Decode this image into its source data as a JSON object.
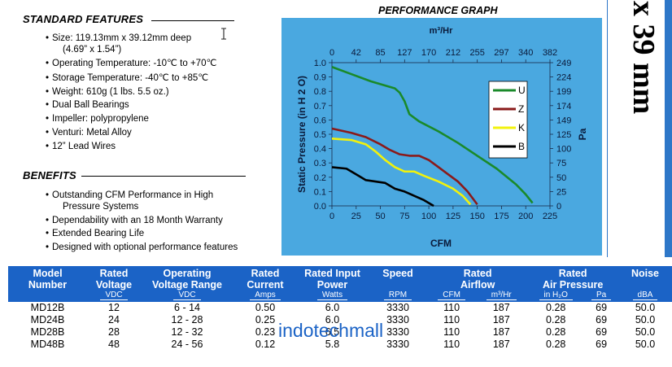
{
  "standard_features": {
    "title": "STANDARD FEATURES",
    "items": [
      "Size:  119.13mm x 39.12mm deep",
      "(4.69” x 1.54”)",
      "Operating Temperature:  -10℃ to +70℃",
      "Storage Temperature:  -40℃ to +85℃",
      "Weight:  610g (1 lbs. 5.5 oz.)",
      "Dual Ball Bearings",
      "Impeller:  polypropylene",
      "Venturi:  Metal Alloy",
      "12” Lead Wires"
    ]
  },
  "benefits": {
    "title": "BENEFITS",
    "items": [
      "Outstanding CFM Performance in High",
      "Pressure Systems",
      "Dependability with an 18 Month Warranty",
      "Extended Bearing Life",
      "Designed with optional performance features"
    ]
  },
  "side_label": "x 39 mm",
  "performance_graph_title": "PERFORMANCE GRAPH",
  "chart_data": {
    "type": "line",
    "title": "PERFORMANCE GRAPH",
    "xlabel": "CFM",
    "ylabel": "Static Pressure (in H 2 O)",
    "x2label": "m³/Hr",
    "y2label": "Pa",
    "xlim": [
      0,
      225
    ],
    "ylim": [
      0,
      1.0
    ],
    "x_ticks": [
      "0",
      "25",
      "50",
      "75",
      "100",
      "125",
      "150",
      "175",
      "200",
      "225"
    ],
    "y_ticks": [
      "0.0",
      "0.1",
      "0.2",
      "0.3",
      "0.4",
      "0.5",
      "0.6",
      "0.7",
      "0.8",
      "0.9",
      "1.0"
    ],
    "x2_ticks": [
      "0",
      "42",
      "85",
      "127",
      "170",
      "212",
      "255",
      "297",
      "340",
      "382"
    ],
    "y2_ticks": [
      "0",
      "25",
      "50",
      "75",
      "100",
      "125",
      "149",
      "174",
      "199",
      "224",
      "249"
    ],
    "grid": false,
    "legend": "right",
    "series": [
      {
        "name": "U",
        "color": "#1a8a2a",
        "x": [
          0,
          20,
          40,
          55,
          65,
          70,
          75,
          80,
          90,
          110,
          130,
          150,
          170,
          190,
          200,
          207
        ],
        "y": [
          0.97,
          0.92,
          0.87,
          0.84,
          0.82,
          0.79,
          0.73,
          0.64,
          0.59,
          0.52,
          0.44,
          0.35,
          0.26,
          0.15,
          0.08,
          0.02
        ]
      },
      {
        "name": "Z",
        "color": "#8a1a1a",
        "x": [
          0,
          20,
          35,
          50,
          60,
          70,
          80,
          90,
          100,
          110,
          120,
          130,
          140,
          150
        ],
        "y": [
          0.54,
          0.51,
          0.48,
          0.43,
          0.39,
          0.36,
          0.35,
          0.35,
          0.32,
          0.27,
          0.22,
          0.17,
          0.1,
          0.01
        ]
      },
      {
        "name": "K",
        "color": "#f2f20c",
        "x": [
          0,
          20,
          35,
          45,
          55,
          65,
          75,
          85,
          95,
          110,
          125,
          135,
          143
        ],
        "y": [
          0.47,
          0.46,
          0.43,
          0.38,
          0.32,
          0.27,
          0.24,
          0.24,
          0.21,
          0.17,
          0.12,
          0.07,
          0.01
        ]
      },
      {
        "name": "B",
        "color": "#000000",
        "x": [
          0,
          15,
          25,
          35,
          45,
          55,
          65,
          75,
          85,
          95,
          105
        ],
        "y": [
          0.27,
          0.26,
          0.22,
          0.18,
          0.17,
          0.16,
          0.12,
          0.1,
          0.07,
          0.04,
          0.0
        ]
      }
    ]
  },
  "table": {
    "headers": [
      {
        "top": "Model",
        "bottom": "Number",
        "unit": ""
      },
      {
        "top": "Rated",
        "bottom": "Voltage",
        "unit": "VDC"
      },
      {
        "top": "Operating",
        "bottom": "Voltage Range",
        "unit": "VDC"
      },
      {
        "top": "Rated",
        "bottom": "Current",
        "unit": "Amps"
      },
      {
        "top": "Rated Input",
        "bottom": "Power",
        "unit": "Watts"
      },
      {
        "top": "Speed",
        "bottom": "",
        "unit": "RPM"
      },
      {
        "top": "Rated",
        "bottom": "Airflow",
        "units": [
          "CFM",
          "m³/Hr"
        ]
      },
      {
        "top": "Rated",
        "bottom": "Air Pressure",
        "units": [
          "in H₂O",
          "Pa"
        ]
      },
      {
        "top": "Noise",
        "bottom": "",
        "unit": "dBA"
      }
    ],
    "rows": [
      [
        "MD12B",
        "12",
        "6 - 14",
        "0.50",
        "6.0",
        "3330",
        "110",
        "187",
        "0.28",
        "69",
        "50.0"
      ],
      [
        "MD24B",
        "24",
        "12 - 28",
        "0.25",
        "6.0",
        "3330",
        "110",
        "187",
        "0.28",
        "69",
        "50.0"
      ],
      [
        "MD28B",
        "28",
        "12 - 32",
        "0.23",
        "6.5",
        "3330",
        "110",
        "187",
        "0.28",
        "69",
        "50.0"
      ],
      [
        "MD48B",
        "48",
        "24 - 56",
        "0.12",
        "5.8",
        "3330",
        "110",
        "187",
        "0.28",
        "69",
        "50.0"
      ]
    ]
  },
  "watermark": "indotechmall"
}
